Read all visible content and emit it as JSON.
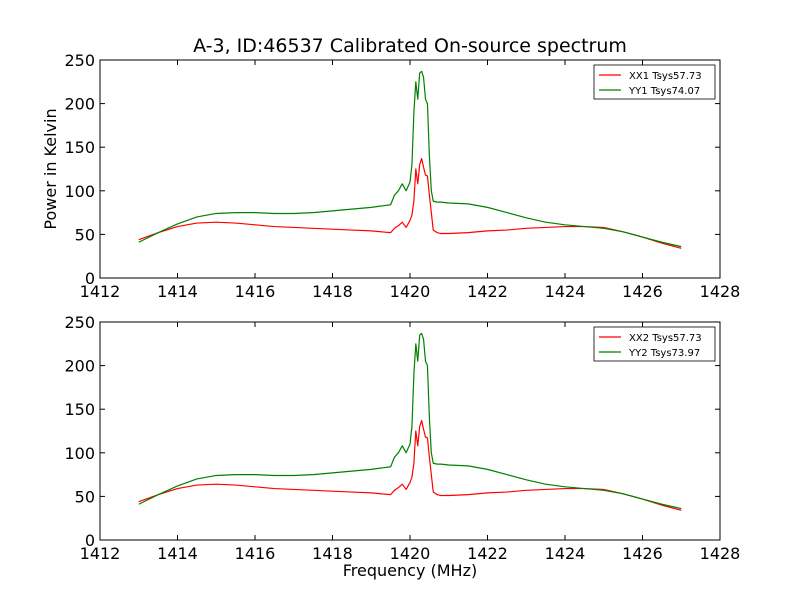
{
  "chart_data": {
    "type": "line",
    "title": "A-3, ID:46537 Calibrated On-source spectrum",
    "xlabel": "Frequency (MHz)",
    "ylabel": "Power in Kelvin",
    "panels": [
      {
        "xlim": [
          1412,
          1428
        ],
        "ylim": [
          0,
          250
        ],
        "xticks": [
          1412,
          1414,
          1416,
          1418,
          1420,
          1422,
          1424,
          1426,
          1428
        ],
        "yticks": [
          0,
          50,
          100,
          150,
          200,
          250
        ],
        "legend_position": "top-right",
        "series": [
          {
            "name": "XX1 Tsys57.73",
            "color": "#ff0000",
            "x": [
              1413.0,
              1413.5,
              1414.0,
              1414.5,
              1415.0,
              1415.5,
              1416.0,
              1416.5,
              1417.0,
              1417.5,
              1418.0,
              1418.5,
              1419.0,
              1419.5,
              1419.6,
              1419.7,
              1419.8,
              1419.9,
              1420.0,
              1420.05,
              1420.1,
              1420.15,
              1420.2,
              1420.25,
              1420.3,
              1420.35,
              1420.4,
              1420.45,
              1420.5,
              1420.55,
              1420.6,
              1420.7,
              1420.8,
              1421.0,
              1421.5,
              1422.0,
              1422.5,
              1423.0,
              1423.5,
              1424.0,
              1424.5,
              1425.0,
              1425.5,
              1426.0,
              1426.5,
              1427.0
            ],
            "y": [
              44,
              52,
              59,
              63,
              64,
              63,
              61,
              59,
              58,
              57,
              56,
              55,
              54,
              52,
              57,
              60,
              64,
              58,
              66,
              72,
              88,
              125,
              108,
              130,
              137,
              127,
              118,
              117,
              95,
              75,
              55,
              52,
              51,
              51,
              52,
              54,
              55,
              57,
              58,
              59,
              59,
              58,
              53,
              47,
              40,
              34
            ]
          },
          {
            "name": "YY1 Tsys74.07",
            "color": "#008000",
            "x": [
              1413.0,
              1413.5,
              1414.0,
              1414.5,
              1415.0,
              1415.5,
              1416.0,
              1416.5,
              1417.0,
              1417.5,
              1418.0,
              1418.5,
              1419.0,
              1419.5,
              1419.6,
              1419.7,
              1419.8,
              1419.9,
              1420.0,
              1420.05,
              1420.1,
              1420.15,
              1420.2,
              1420.25,
              1420.3,
              1420.35,
              1420.4,
              1420.45,
              1420.5,
              1420.55,
              1420.6,
              1420.7,
              1420.8,
              1421.0,
              1421.5,
              1422.0,
              1422.5,
              1423.0,
              1423.5,
              1424.0,
              1424.5,
              1425.0,
              1425.5,
              1426.0,
              1426.5,
              1427.0
            ],
            "y": [
              41,
              52,
              62,
              70,
              74,
              75,
              75,
              74,
              74,
              75,
              77,
              79,
              81,
              84,
              95,
              100,
              108,
              100,
              110,
              130,
              190,
              225,
              205,
              235,
              237,
              230,
              205,
              200,
              140,
              100,
              88,
              87,
              87,
              86,
              85,
              81,
              75,
              69,
              64,
              61,
              59,
              57,
              53,
              47,
              41,
              36
            ]
          }
        ]
      },
      {
        "xlim": [
          1412,
          1428
        ],
        "ylim": [
          0,
          250
        ],
        "xticks": [
          1412,
          1414,
          1416,
          1418,
          1420,
          1422,
          1424,
          1426,
          1428
        ],
        "yticks": [
          0,
          50,
          100,
          150,
          200,
          250
        ],
        "legend_position": "top-right",
        "series": [
          {
            "name": "XX2 Tsys57.73",
            "color": "#ff0000",
            "x": [
              1413.0,
              1413.5,
              1414.0,
              1414.5,
              1415.0,
              1415.5,
              1416.0,
              1416.5,
              1417.0,
              1417.5,
              1418.0,
              1418.5,
              1419.0,
              1419.5,
              1419.6,
              1419.7,
              1419.8,
              1419.9,
              1420.0,
              1420.05,
              1420.1,
              1420.15,
              1420.2,
              1420.25,
              1420.3,
              1420.35,
              1420.4,
              1420.45,
              1420.5,
              1420.55,
              1420.6,
              1420.7,
              1420.8,
              1421.0,
              1421.5,
              1422.0,
              1422.5,
              1423.0,
              1423.5,
              1424.0,
              1424.5,
              1425.0,
              1425.5,
              1426.0,
              1426.5,
              1427.0
            ],
            "y": [
              44,
              52,
              59,
              63,
              64,
              63,
              61,
              59,
              58,
              57,
              56,
              55,
              54,
              52,
              57,
              60,
              64,
              58,
              66,
              72,
              88,
              125,
              108,
              130,
              137,
              127,
              118,
              117,
              95,
              75,
              55,
              52,
              51,
              51,
              52,
              54,
              55,
              57,
              58,
              59,
              59,
              58,
              53,
              47,
              40,
              34
            ]
          },
          {
            "name": "YY2 Tsys73.97",
            "color": "#008000",
            "x": [
              1413.0,
              1413.5,
              1414.0,
              1414.5,
              1415.0,
              1415.5,
              1416.0,
              1416.5,
              1417.0,
              1417.5,
              1418.0,
              1418.5,
              1419.0,
              1419.5,
              1419.6,
              1419.7,
              1419.8,
              1419.9,
              1420.0,
              1420.05,
              1420.1,
              1420.15,
              1420.2,
              1420.25,
              1420.3,
              1420.35,
              1420.4,
              1420.45,
              1420.5,
              1420.55,
              1420.6,
              1420.7,
              1420.8,
              1421.0,
              1421.5,
              1422.0,
              1422.5,
              1423.0,
              1423.5,
              1424.0,
              1424.5,
              1425.0,
              1425.5,
              1426.0,
              1426.5,
              1427.0
            ],
            "y": [
              41,
              52,
              62,
              70,
              74,
              75,
              75,
              74,
              74,
              75,
              77,
              79,
              81,
              84,
              95,
              100,
              108,
              100,
              110,
              130,
              190,
              225,
              205,
              235,
              237,
              230,
              205,
              200,
              140,
              100,
              88,
              87,
              87,
              86,
              85,
              81,
              75,
              69,
              64,
              61,
              59,
              57,
              53,
              47,
              41,
              36
            ]
          }
        ]
      }
    ]
  }
}
